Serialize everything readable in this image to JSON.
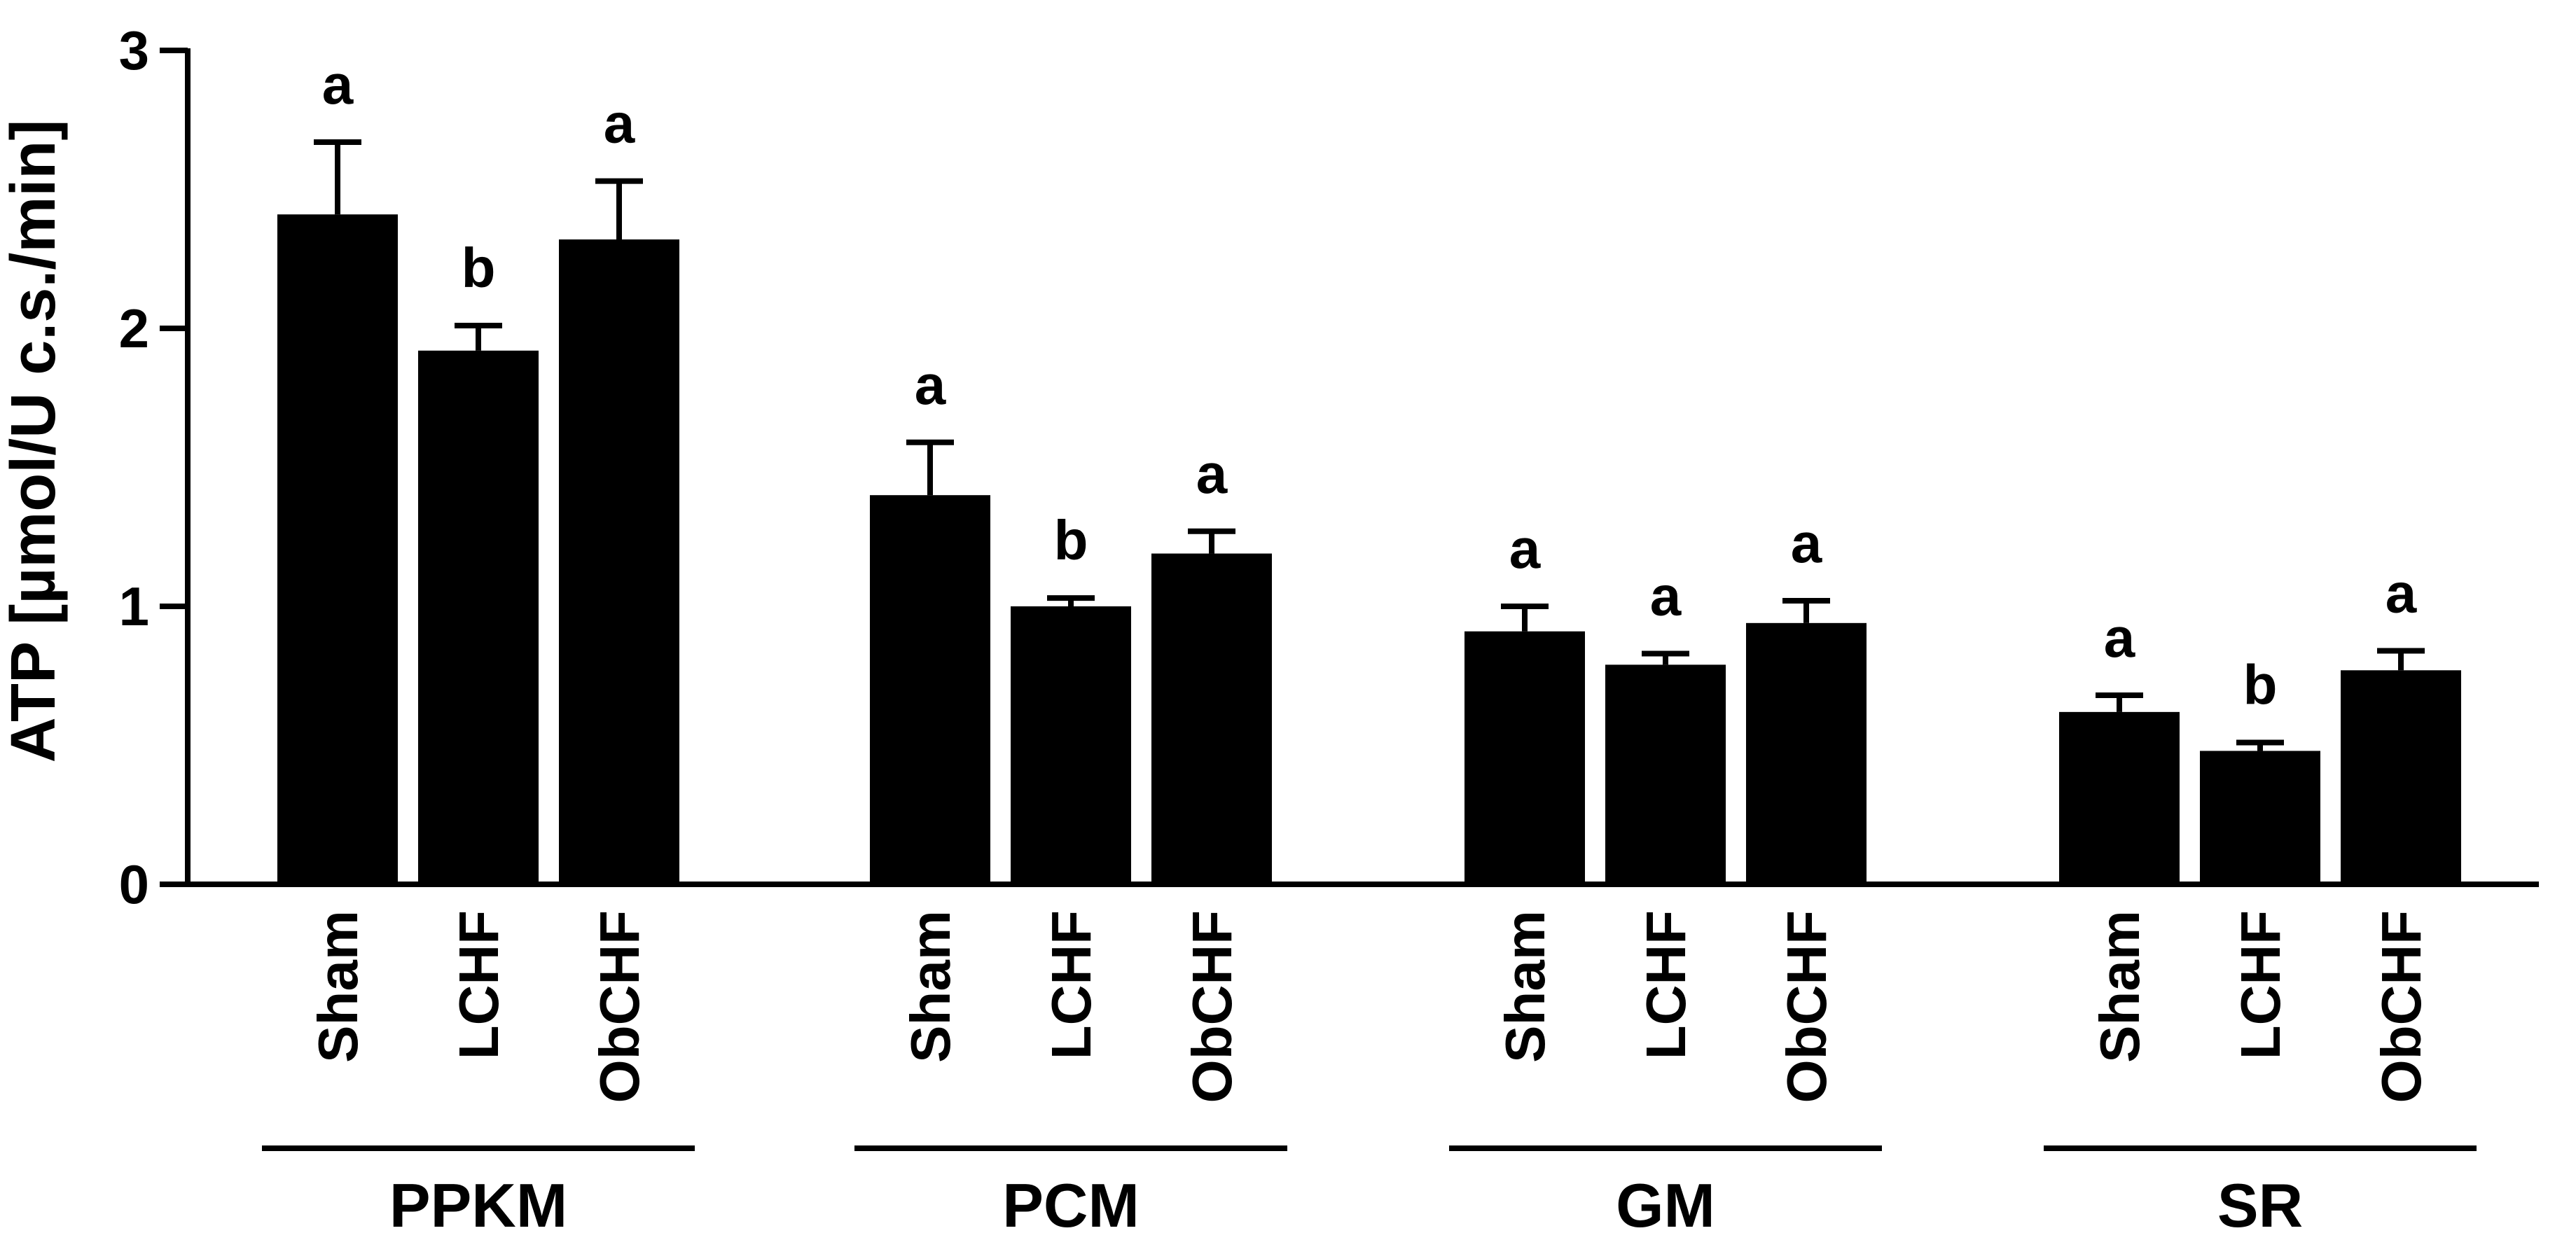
{
  "chart_data": {
    "type": "bar",
    "title": "",
    "xlabel": "",
    "ylabel": "ATP [µmol/U c.s./min]",
    "ylim": [
      0,
      3
    ],
    "yticks": [
      0,
      1,
      2,
      3
    ],
    "grid": false,
    "legend": "none",
    "bar_color": "#000000",
    "group_line": true,
    "groups": [
      {
        "name": "PPKM",
        "categories": [
          "Sham",
          "LCHF",
          "ObCHF"
        ],
        "values": [
          2.41,
          1.92,
          2.32
        ],
        "errors": [
          0.26,
          0.09,
          0.21
        ],
        "labels": [
          "a",
          "b",
          "a"
        ]
      },
      {
        "name": "PCM",
        "categories": [
          "Sham",
          "LCHF",
          "ObCHF"
        ],
        "values": [
          1.4,
          1.0,
          1.19
        ],
        "errors": [
          0.19,
          0.03,
          0.08
        ],
        "labels": [
          "a",
          "b",
          "a"
        ]
      },
      {
        "name": "GM",
        "categories": [
          "Sham",
          "LCHF",
          "ObCHF"
        ],
        "values": [
          0.91,
          0.79,
          0.94
        ],
        "errors": [
          0.09,
          0.04,
          0.08
        ],
        "labels": [
          "a",
          "a",
          "a"
        ]
      },
      {
        "name": "SR",
        "categories": [
          "Sham",
          "LCHF",
          "ObCHF"
        ],
        "values": [
          0.62,
          0.48,
          0.77
        ],
        "errors": [
          0.06,
          0.03,
          0.07
        ],
        "labels": [
          "a",
          "b",
          "a"
        ]
      }
    ]
  }
}
